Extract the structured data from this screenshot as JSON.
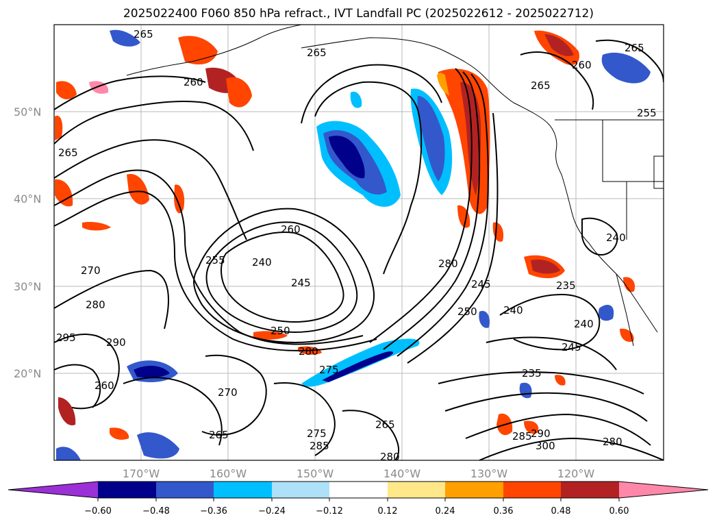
{
  "title": "2025022400 F060 850 hPa refract., IVT Landfall PC (2025022612 - 2025022712)",
  "latitude_labels": [
    "50°N",
    "40°N",
    "30°N",
    "20°N"
  ],
  "longitude_labels": [
    "170°W",
    "160°W",
    "150°W",
    "140°W",
    "130°W",
    "120°W"
  ],
  "colorbar": {
    "tick_labels": [
      "−0.60",
      "−0.48",
      "−0.36",
      "−0.24",
      "−0.12",
      "0.12",
      "0.24",
      "0.36",
      "0.48",
      "0.60"
    ],
    "colors": [
      "#9b30d6",
      "#00008b",
      "#3358cc",
      "#00bfff",
      "#aee0f8",
      "#ffffff",
      "#ffe88a",
      "#ffa000",
      "#ff4500",
      "#b22222",
      "#ff88aa"
    ]
  },
  "contour_labels": [
    "265",
    "265",
    "260",
    "265",
    "260",
    "265",
    "255",
    "265",
    "260",
    "270",
    "255",
    "240",
    "245",
    "280",
    "245",
    "250",
    "240",
    "235",
    "240",
    "245",
    "235",
    "280",
    "295",
    "290",
    "250",
    "280",
    "275",
    "270",
    "265",
    "275",
    "285",
    "265",
    "280",
    "285",
    "290",
    "300",
    "280",
    "240",
    "260"
  ],
  "shading_colors": {
    "negative_strong": "#00008b",
    "negative_mid": "#3358cc",
    "negative_weak": "#00bfff",
    "positive_weak": "#ffa000",
    "positive_mid": "#ff4500",
    "positive_strong": "#b22222",
    "positive_max": "#ff88aa"
  }
}
